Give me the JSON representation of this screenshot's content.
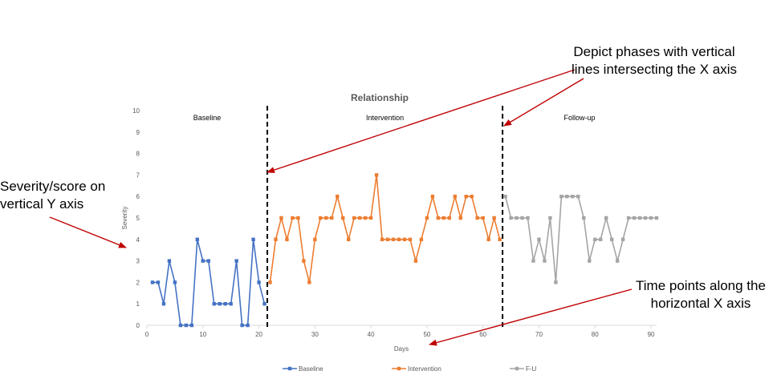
{
  "callouts": {
    "phases": "Depict phases with vertical lines intersecting the X axis",
    "y_axis": "Severity/score on vertical Y axis",
    "x_axis": "Time points along the horizontal X axis"
  },
  "colors": {
    "baseline": "#4472C4",
    "intervention": "#ED7D31",
    "followup": "#A5A5A5",
    "arrow": "#C00000",
    "axis": "#D9D9D9",
    "text": "#595959"
  },
  "chart_data": {
    "type": "line",
    "title": "Relationship",
    "xlabel": "Days",
    "ylabel": "Severity",
    "xlim": [
      0,
      91
    ],
    "ylim": [
      0,
      10
    ],
    "xticks": [
      0,
      10,
      20,
      30,
      40,
      50,
      60,
      70,
      80,
      90
    ],
    "yticks": [
      0,
      1,
      2,
      3,
      4,
      5,
      6,
      7,
      8,
      9,
      10
    ],
    "grid": false,
    "legend_position": "bottom",
    "phase_lines": [
      21.5,
      63.5
    ],
    "phase_labels": [
      "Baseline",
      "Intervention",
      "Follow-up"
    ],
    "series": [
      {
        "name": "Baseline",
        "x": [
          1,
          2,
          3,
          4,
          5,
          6,
          7,
          8,
          9,
          10,
          11,
          12,
          13,
          14,
          15,
          16,
          17,
          18,
          19,
          20,
          21
        ],
        "values": [
          2,
          2,
          1,
          3,
          2,
          0,
          0,
          0,
          4,
          3,
          3,
          1,
          1,
          1,
          1,
          3,
          0,
          0,
          4,
          2,
          1
        ]
      },
      {
        "name": "Intervention",
        "x": [
          22,
          23,
          24,
          25,
          26,
          27,
          28,
          29,
          30,
          31,
          32,
          33,
          34,
          35,
          36,
          37,
          38,
          39,
          40,
          41,
          42,
          43,
          44,
          45,
          46,
          47,
          48,
          49,
          50,
          51,
          52,
          53,
          54,
          55,
          56,
          57,
          58,
          59,
          60,
          61,
          62,
          63
        ],
        "values": [
          2,
          4,
          5,
          4,
          5,
          5,
          3,
          2,
          4,
          5,
          5,
          5,
          6,
          5,
          4,
          5,
          5,
          5,
          5,
          7,
          4,
          4,
          4,
          4,
          4,
          4,
          3,
          4,
          5,
          6,
          5,
          5,
          5,
          6,
          5,
          6,
          6,
          5,
          5,
          4,
          5,
          4
        ]
      },
      {
        "name": "F-U",
        "x": [
          64,
          65,
          66,
          67,
          68,
          69,
          70,
          71,
          72,
          73,
          74,
          75,
          76,
          77,
          78,
          79,
          80,
          81,
          82,
          83,
          84,
          85,
          86,
          87,
          88,
          89,
          90,
          91
        ],
        "values": [
          6,
          5,
          5,
          5,
          5,
          3,
          4,
          3,
          5,
          2,
          6,
          6,
          6,
          6,
          5,
          3,
          4,
          4,
          5,
          4,
          3,
          4,
          5,
          5,
          5,
          5,
          5,
          5
        ]
      }
    ]
  }
}
